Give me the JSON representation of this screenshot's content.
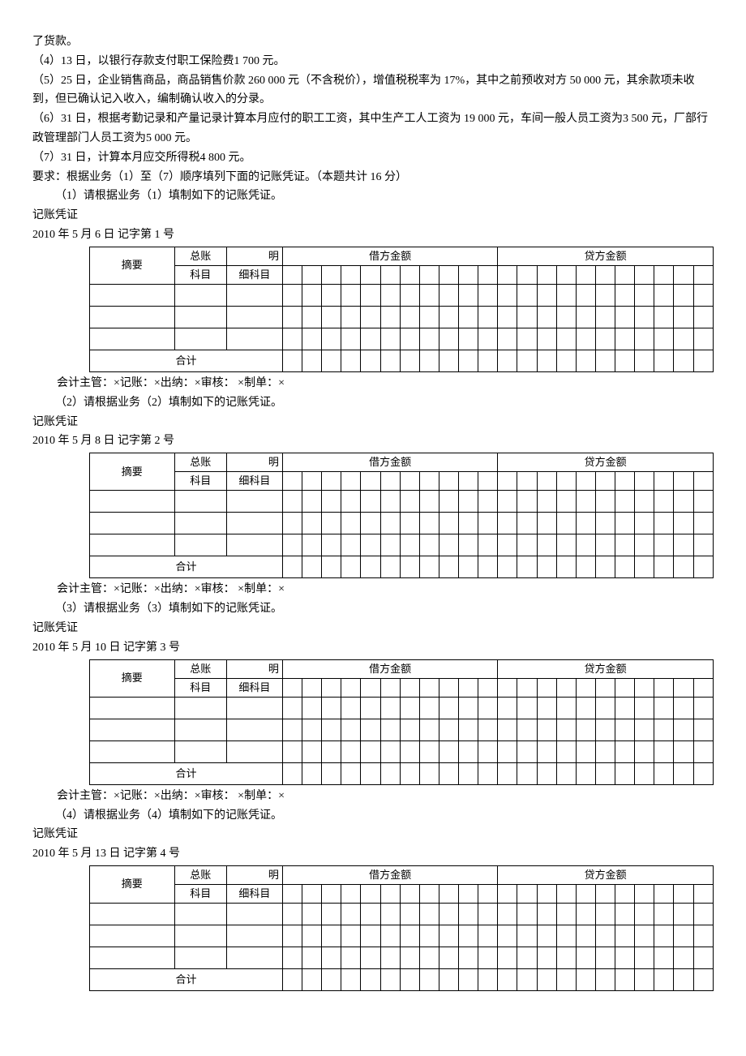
{
  "intro_lines": [
    "了货款。",
    "（4）13 日，以银行存款支付职工保险费1 700 元。",
    "（5）25 日，企业销售商品，商品销售价款 260 000 元（不含税价），增值税税率为 17%，其中之前预收对方 50 000 元，其余款项未收到，但已确认记入收入，编制确认收入的分录。",
    "（6）31 日，根据考勤记录和产量记录计算本月应付的职工工资，其中生产工人工资为 19 000 元，车间一般人员工资为3 500 元，厂部行政管理部门人员工资为5 000 元。",
    "（7）31 日，计算本月应交所得税4 800 元。",
    "要求：根据业务（1）至（7）顺序填列下面的记账凭证。（本题共计 16 分）"
  ],
  "sub_req_indent": "　　（1）请根据业务（1）填制如下的记账凭证。",
  "voucher_label": "记账凭证",
  "sig_line": "会计主管：×记账：×出纳：×审核：  ×制单：×",
  "headers": {
    "summary": "摘要",
    "gl": "总账",
    "gl2": "科目",
    "detail_top": "明",
    "detail_bot": "细科目",
    "debit": "借方金额",
    "credit": "贷方金额",
    "total": "合计"
  },
  "vouchers": [
    {
      "prompt": "（1）请根据业务（1）填制如下的记账凭证。",
      "date": "2010 年 5 月 6 日  记字第 1 号"
    },
    {
      "prompt": "（2）请根据业务（2）填制如下的记账凭证。",
      "date": "2010 年 5 月 8 日  记字第 2 号"
    },
    {
      "prompt": "（3）请根据业务（3）填制如下的记账凭证。",
      "date": "2010 年 5 月 10 日  记字第 3 号"
    },
    {
      "prompt": "（4）请根据业务（4）填制如下的记账凭证。",
      "date": "2010 年 5 月 13 日  记字第 4 号"
    }
  ],
  "amount_cols": 11
}
